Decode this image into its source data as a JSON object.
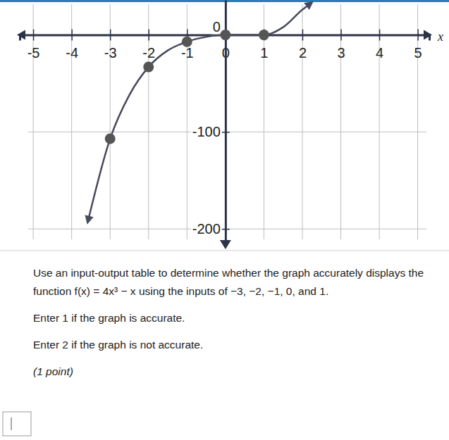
{
  "chart_data": {
    "type": "line",
    "x_label": "x",
    "xlim": [
      -5.35,
      5.3
    ],
    "ylim": [
      -218,
      36
    ],
    "xticks": [
      -5,
      -4,
      -3,
      -2,
      -1,
      0,
      1,
      2,
      3,
      4,
      5
    ],
    "yticks": [
      -200,
      -100,
      0
    ],
    "grid": true,
    "series": [
      {
        "type": "line",
        "color": "#474a5c",
        "marker": "none",
        "x": [
          -3.57,
          -3,
          -2.5,
          -2,
          -1.5,
          -1,
          -0.5,
          0,
          0.5,
          1,
          1.5,
          2,
          2.2
        ],
        "values": [
          -191,
          -107,
          -62,
          -33,
          -16,
          -7,
          -2,
          0,
          0,
          0,
          8,
          26,
          32
        ]
      },
      {
        "type": "scatter",
        "color": "#555555",
        "marker": "circle",
        "x": [
          -3,
          -2,
          -1,
          0,
          1
        ],
        "values": [
          -107,
          -33,
          -7,
          0,
          0
        ]
      }
    ]
  },
  "question": {
    "prompt": [
      "Use an input-output table to determine whether the graph accurately displays the",
      "function f(x) = 4x³ − x using the inputs of −3, −2, −1, 0, and 1."
    ],
    "options": [
      "Enter 1 if the graph is accurate.",
      "Enter 2 if the graph is not accurate."
    ],
    "points": "(1 point)"
  }
}
